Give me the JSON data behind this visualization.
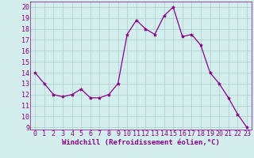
{
  "x": [
    0,
    1,
    2,
    3,
    4,
    5,
    6,
    7,
    8,
    9,
    10,
    11,
    12,
    13,
    14,
    15,
    16,
    17,
    18,
    19,
    20,
    21,
    22,
    23
  ],
  "y": [
    14.0,
    13.0,
    12.0,
    11.8,
    12.0,
    12.5,
    11.7,
    11.7,
    12.0,
    13.0,
    17.5,
    18.8,
    18.0,
    17.5,
    19.2,
    20.0,
    17.3,
    17.5,
    16.5,
    14.0,
    13.0,
    11.7,
    10.2,
    9.0
  ],
  "line_color": "#880088",
  "marker": "*",
  "marker_size": 3,
  "background_color": "#d4eeee",
  "grid_color": "#aacccc",
  "xlabel": "Windchill (Refroidissement éolien,°C)",
  "ylabel_ticks": [
    9,
    10,
    11,
    12,
    13,
    14,
    15,
    16,
    17,
    18,
    19,
    20
  ],
  "ylim": [
    8.8,
    20.5
  ],
  "xlim": [
    -0.5,
    23.5
  ],
  "tick_color": "#880088",
  "xlabel_color": "#880088",
  "label_fontsize": 6.5,
  "tick_fontsize": 6.0
}
